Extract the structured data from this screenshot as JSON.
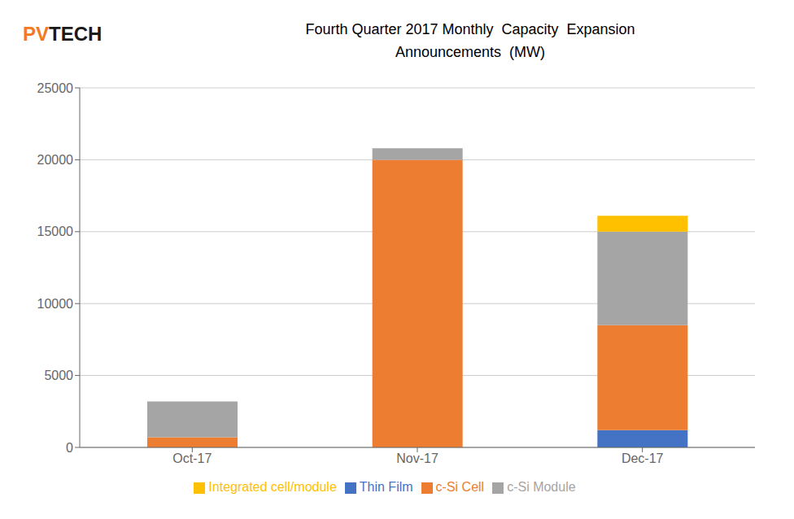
{
  "chart_data": {
    "type": "bar",
    "title": "Fourth Quarter 2017 Monthly  Capacity  Expansion\nAnnouncements  (MW)",
    "categories": [
      "Oct-17",
      "Nov-17",
      "Dec-17"
    ],
    "series": [
      {
        "name": "Thin Film",
        "color": "#4472C4",
        "values": [
          0,
          0,
          1200
        ]
      },
      {
        "name": "c-Si Cell",
        "color": "#ED7D31",
        "values": [
          700,
          20000,
          7300
        ]
      },
      {
        "name": "c-Si Module",
        "color": "#A5A5A5",
        "values": [
          2500,
          800,
          6500
        ]
      },
      {
        "name": "Integrated cell/module",
        "color": "#FFC000",
        "values": [
          0,
          0,
          1100
        ]
      }
    ],
    "stacked": true,
    "ylim": [
      0,
      25000
    ],
    "yticks": [
      0,
      5000,
      10000,
      15000,
      20000,
      25000
    ],
    "grid": true,
    "legend": "bottom",
    "annotations": [
      {
        "text": "PV",
        "color": "#F47920"
      },
      {
        "text": "TECH",
        "color": "#1A1A1A"
      }
    ]
  }
}
